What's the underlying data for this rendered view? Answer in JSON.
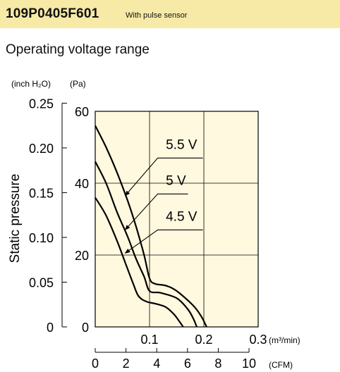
{
  "header": {
    "model": "109P0405F601",
    "subtitle": "With pulse sensor"
  },
  "section_title": "Operating voltage range",
  "colors": {
    "header_band": "#f7eaa7",
    "plot_background": "#fff9df",
    "curve": "#000000",
    "grid": "#000000"
  },
  "chart_data": {
    "type": "line",
    "title": "Operating voltage range",
    "ylabel": "Static pressure",
    "y_units": {
      "inch": "(inch H₂O)",
      "pa": "(Pa)"
    },
    "x_units": {
      "m3": "(m³/min)",
      "cfm": "(CFM)"
    },
    "xlim": [
      0,
      0.3
    ],
    "ylim_pa": [
      0,
      60
    ],
    "x_ticks_m3": [
      "0.1",
      "0.2",
      "0.3"
    ],
    "x_ticks_m3_values": [
      0.1,
      0.2,
      0.3
    ],
    "x_ticks_cfm": [
      "0",
      "2",
      "4",
      "6",
      "8",
      "10"
    ],
    "x_ticks_cfm_values": [
      0,
      2,
      4,
      6,
      8,
      10
    ],
    "y_ticks_pa": [
      "0",
      "20",
      "40",
      "60"
    ],
    "y_ticks_pa_values": [
      0,
      20,
      40,
      60
    ],
    "y_ticks_inch": [
      "0",
      "0.05",
      "0.10",
      "0.15",
      "0.20",
      "0.25"
    ],
    "y_ticks_inch_values": [
      0,
      0.05,
      0.1,
      0.15,
      0.2,
      0.25
    ],
    "grid": true,
    "series": [
      {
        "name": "5.5 V",
        "x": [
          0,
          0.02,
          0.04,
          0.06,
          0.075,
          0.09,
          0.1,
          0.11,
          0.13,
          0.15,
          0.18,
          0.195,
          0.205
        ],
        "y": [
          56,
          50,
          43,
          35,
          28,
          20,
          13.5,
          12,
          11.5,
          10,
          6,
          3,
          0
        ]
      },
      {
        "name": "5 V",
        "x": [
          0,
          0.02,
          0.04,
          0.06,
          0.075,
          0.09,
          0.1,
          0.12,
          0.15,
          0.17,
          0.18,
          0.187
        ],
        "y": [
          46,
          40,
          32,
          25,
          19,
          14,
          10,
          9.5,
          8,
          5,
          2.5,
          0
        ]
      },
      {
        "name": "4.5 V",
        "x": [
          0,
          0.02,
          0.04,
          0.055,
          0.07,
          0.08,
          0.095,
          0.11,
          0.13,
          0.145,
          0.155,
          0.162
        ],
        "y": [
          36,
          31,
          24,
          18,
          12,
          8.5,
          7,
          6.5,
          5.5,
          3.5,
          1.5,
          0
        ]
      }
    ],
    "annotations": [
      {
        "label": "5.5 V",
        "series": "5.5 V",
        "text_at": [
          0.13,
          49.5
        ],
        "elbow": [
          0.115,
          47
        ],
        "arrow_to": [
          0.055,
          36.5
        ]
      },
      {
        "label": "5 V",
        "series": "5 V",
        "text_at": [
          0.13,
          39.5
        ],
        "elbow": [
          0.115,
          37
        ],
        "arrow_to": [
          0.055,
          27
        ]
      },
      {
        "label": "4.5 V",
        "series": "4.5 V",
        "text_at": [
          0.13,
          29.5
        ],
        "elbow": [
          0.115,
          27
        ],
        "arrow_to": [
          0.055,
          20.5
        ]
      }
    ]
  }
}
